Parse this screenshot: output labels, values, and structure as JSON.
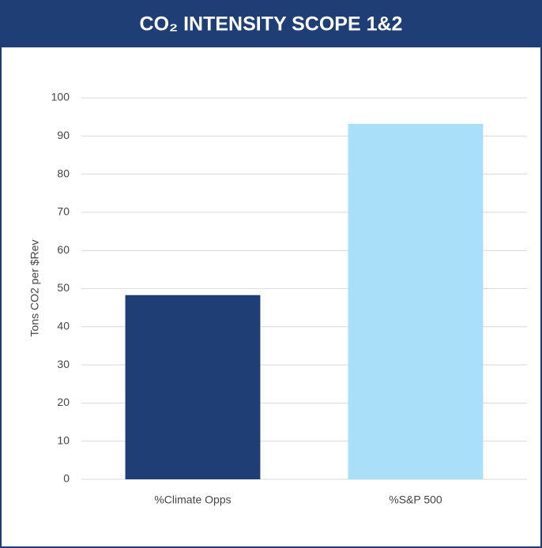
{
  "chart_data": {
    "type": "bar",
    "title": "CO₂ INTENSITY SCOPE 1&2",
    "ylabel": "Tons CO2 per $Rev",
    "categories": [
      "%Climate Opps",
      "%S&P 500"
    ],
    "values": [
      48.3,
      93.2
    ],
    "colors": [
      "#1f3e75",
      "#a9dff9"
    ],
    "ylim": [
      0,
      100
    ],
    "yticks": [
      0,
      10,
      20,
      30,
      40,
      50,
      60,
      70,
      80,
      90,
      100
    ],
    "grid": true
  }
}
